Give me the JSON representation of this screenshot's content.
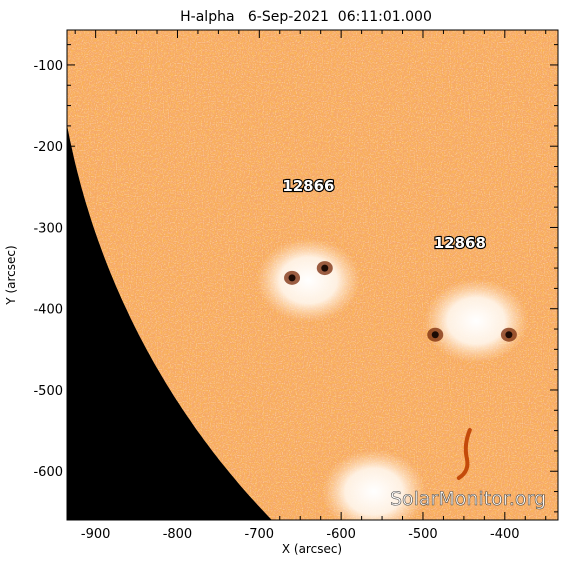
{
  "title": "H-alpha   6-Sep-2021  06:11:01.000",
  "axes": {
    "xlabel": "X (arcsec)",
    "ylabel": "Y (arcsec)",
    "xlim": [
      -935,
      -335
    ],
    "ylim": [
      -660,
      -57
    ],
    "x_ticks": [
      -900,
      -800,
      -700,
      -600,
      -500,
      -400
    ],
    "y_ticks": [
      -100,
      -200,
      -300,
      -400,
      -500,
      -600
    ]
  },
  "active_regions": [
    {
      "label": "12866",
      "x": -640,
      "y": -255
    },
    {
      "label": "12868",
      "x": -455,
      "y": -325
    }
  ],
  "features": [
    {
      "kind": "plage",
      "x": -640,
      "y": -365
    },
    {
      "kind": "plage",
      "x": -435,
      "y": -415
    },
    {
      "kind": "plage",
      "x": -560,
      "y": -625
    },
    {
      "kind": "sunspot",
      "x": -395,
      "y": -432
    },
    {
      "kind": "sunspot",
      "x": -485,
      "y": -432
    },
    {
      "kind": "sunspot",
      "x": -620,
      "y": -350
    },
    {
      "kind": "sunspot",
      "x": -660,
      "y": -362
    },
    {
      "kind": "filament",
      "x": -455,
      "y": -580
    }
  ],
  "solar_limb": {
    "center_x": 0,
    "center_y": 0,
    "radius": 951
  },
  "watermark": "SolarMonitor.org",
  "colors": {
    "disk": "#f5a25e",
    "dark": "#d8600c",
    "bright": "#fff6ec",
    "space": "#000000"
  }
}
